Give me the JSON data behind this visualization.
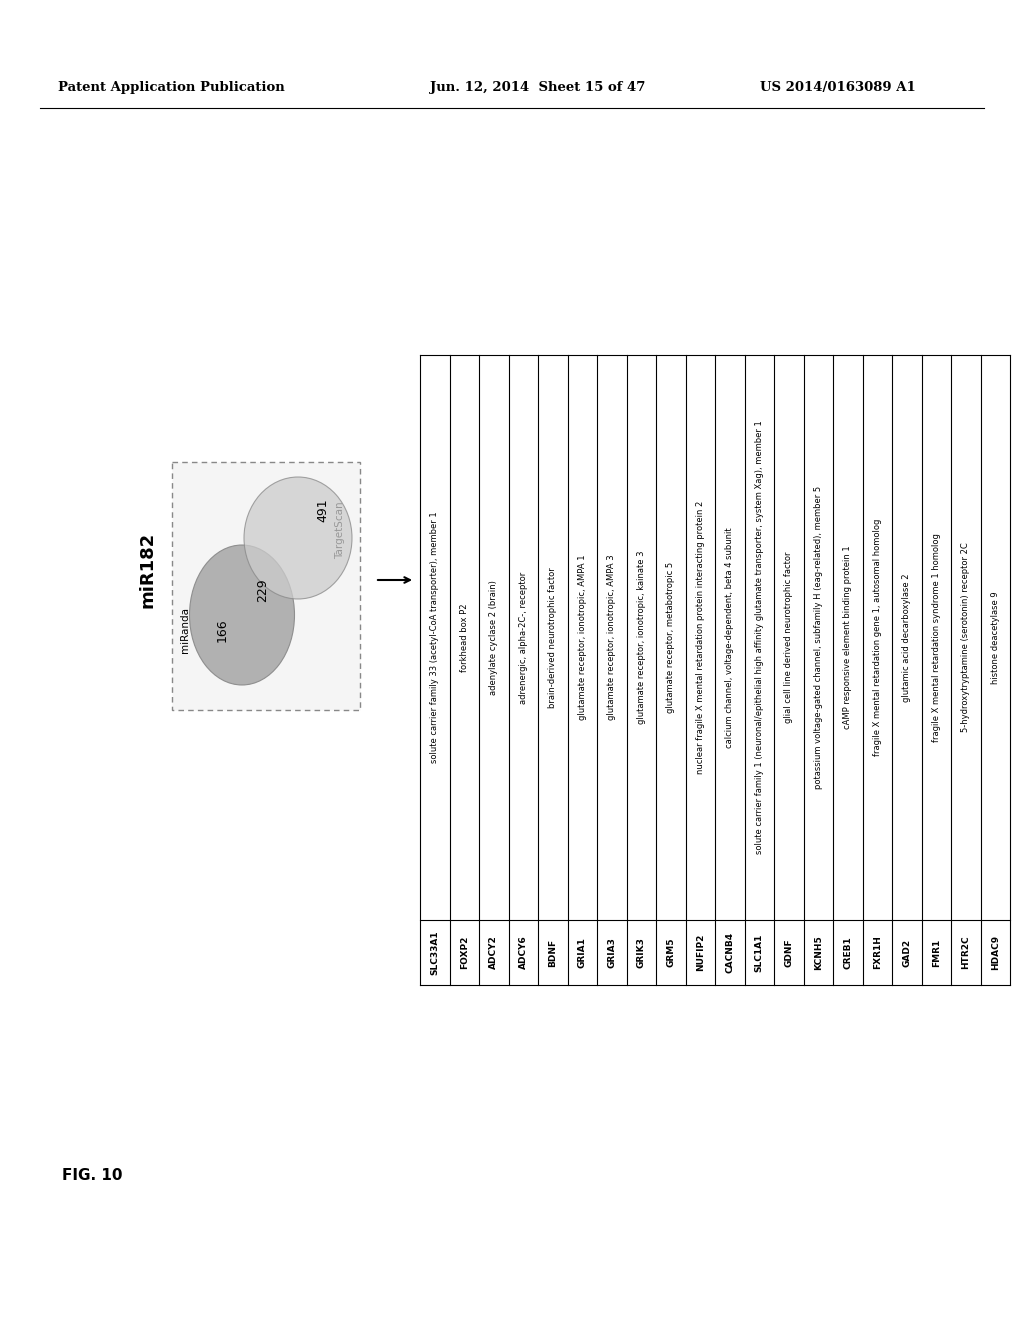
{
  "header_left": "Patent Application Publication",
  "header_mid": "Jun. 12, 2014  Sheet 15 of 47",
  "header_right": "US 2014/0163089 A1",
  "fig_label": "FIG. 10",
  "title": "miR182",
  "venn_label_left": "miRanda",
  "venn_label_right": "TargetScan",
  "venn_num_left": "166",
  "venn_num_center": "229",
  "venn_num_right": "491",
  "genes": [
    [
      "SLC33A1",
      "solute carrier family 33 (acetyl-CoA transporter), member 1"
    ],
    [
      "FOXP2",
      "forkhead box P2"
    ],
    [
      "ADCY2",
      "adenylate cyclase 2 (brain)"
    ],
    [
      "ADCY6",
      "adrenergic, alpha-2C-, receptor"
    ],
    [
      "BDNF",
      "brain-derived neurotrophic factor"
    ],
    [
      "GRIA1",
      "glutamate receptor, ionotropic, AMPA 1"
    ],
    [
      "GRIA3",
      "glutamate receptor, ionotropic, AMPA 3"
    ],
    [
      "GRIK3",
      "glutamate receptor, ionotropic, kainate 3"
    ],
    [
      "GRM5",
      "glutamate receptor, metabotropic 5"
    ],
    [
      "NUFIP2",
      "nuclear fragile X mental retardation protein interacting protein 2"
    ],
    [
      "CACNB4",
      "calcium channel, voltage-dependent, beta 4 subunit"
    ],
    [
      "SLC1A1",
      "solute carrier family 1 (neuronal/epithelial high affinity glutamate transporter, system Xag), member 1"
    ],
    [
      "GDNF",
      "glial cell line derived neurotrophic factor"
    ],
    [
      "KCNH5",
      "potassium voltage-gated channel, subfamily H (eag-related), member 5"
    ],
    [
      "CREB1",
      "cAMP responsive element binding protein 1"
    ],
    [
      "FXR1H",
      "fragile X mental retardation gene 1, autosomal homolog"
    ],
    [
      "GAD2",
      "glutamic acid decarboxylase 2"
    ],
    [
      "FMR1",
      "fragile X mental retardation syndrome 1 homolog"
    ],
    [
      "HTR2C",
      "5-hydroxytryptamine (serotonin) receptor 2C"
    ],
    [
      "HDAC9",
      "histone deacetylase 9"
    ]
  ],
  "bg_color": "#ffffff"
}
